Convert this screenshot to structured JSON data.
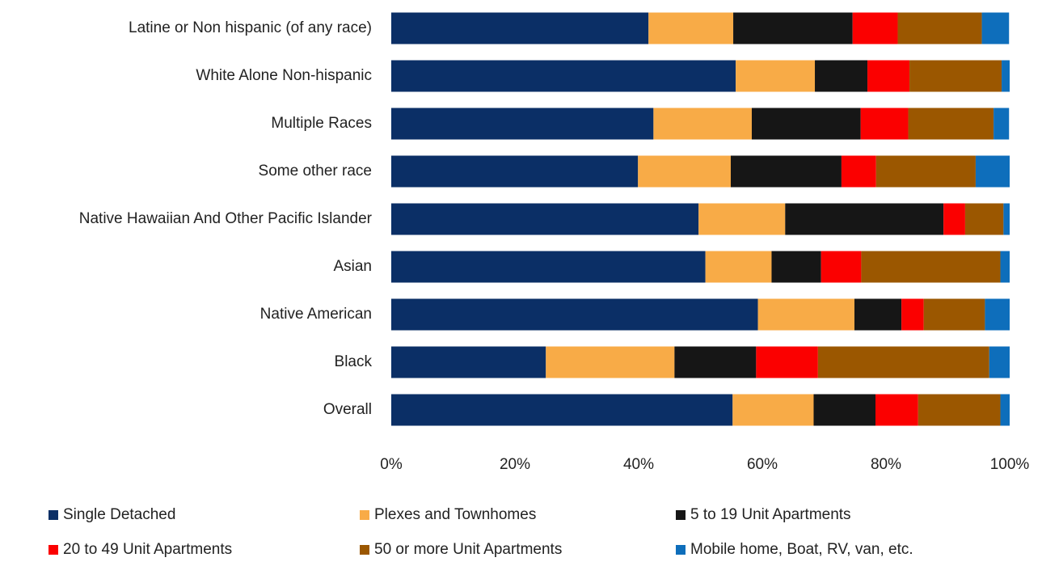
{
  "chart_data": {
    "type": "stacked_bar_horizontal",
    "categories": [
      "Latine or Non hispanic (of any race)",
      "White Alone Non-hispanic",
      "Multiple Races",
      "Some other race",
      "Native Hawaiian And Other Pacific Islander",
      "Asian",
      "Native American",
      "Black",
      "Overall"
    ],
    "series": [
      {
        "name": "Single Detached",
        "color": "#0b2f66",
        "values": [
          41.6,
          55.7,
          42.4,
          39.9,
          49.7,
          50.8,
          59.3,
          25.0,
          55.2
        ]
      },
      {
        "name": "Plexes and Townhomes",
        "color": "#f8ab47",
        "values": [
          13.7,
          12.8,
          15.9,
          15.0,
          14.0,
          10.7,
          15.6,
          20.8,
          13.1
        ]
      },
      {
        "name": "5 to 19 Unit Apartments",
        "color": "#161616",
        "values": [
          19.3,
          8.5,
          17.6,
          17.9,
          25.6,
          8.0,
          7.6,
          13.2,
          10.0
        ]
      },
      {
        "name": "20 to 49 Unit Apartments",
        "color": "#fb0000",
        "values": [
          7.3,
          6.8,
          7.7,
          5.6,
          3.5,
          6.5,
          3.6,
          10.0,
          6.9
        ]
      },
      {
        "name": "50 or more Unit Apartments",
        "color": "#9b5700",
        "values": [
          13.6,
          14.9,
          13.8,
          16.1,
          6.2,
          22.5,
          9.9,
          27.7,
          13.3
        ]
      },
      {
        "name": "Mobile home, Boat, RV, van, etc.",
        "color": "#0e6ebb",
        "values": [
          4.4,
          1.3,
          2.5,
          5.5,
          1.0,
          1.5,
          4.0,
          3.3,
          1.5
        ]
      }
    ],
    "xlim": [
      0,
      100
    ],
    "xticks": [
      {
        "value": 0,
        "label": "0%"
      },
      {
        "value": 20,
        "label": "20%"
      },
      {
        "value": 40,
        "label": "40%"
      },
      {
        "value": 60,
        "label": "60%"
      },
      {
        "value": 80,
        "label": "80%"
      },
      {
        "value": 100,
        "label": "100%"
      }
    ],
    "grid": false,
    "legend": "bottom"
  }
}
